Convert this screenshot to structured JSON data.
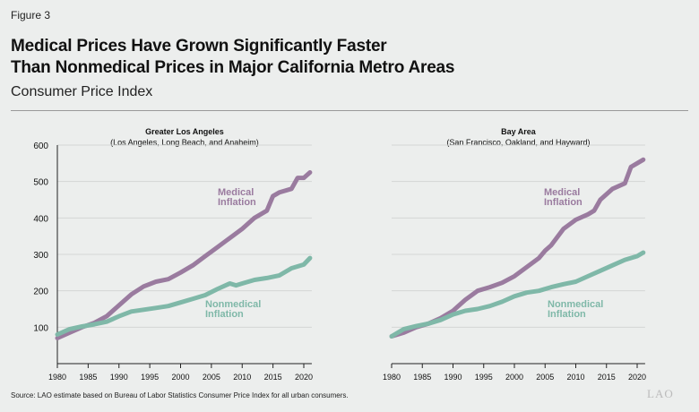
{
  "figure_label": "Figure 3",
  "title_line1": "Medical Prices Have Grown Significantly Faster",
  "title_line2": "Than Nonmedical Prices in Major California Metro Areas",
  "subtitle": "Consumer Price Index",
  "source": "Source: LAO estimate based on Bureau of Labor Statistics Consumer Price Index for all urban consumers.",
  "logo": "LAO",
  "colors": {
    "medical": "#9a7b9f",
    "nonmedical": "#7fb8a8"
  },
  "chart_data": [
    {
      "type": "line",
      "title": "Greater Los Angeles",
      "subtitle": "(Los Angeles, Long Beach, and Anaheim)",
      "ylim": [
        0,
        600
      ],
      "yticks": [
        100,
        200,
        300,
        400,
        500,
        600
      ],
      "xlim": [
        1980,
        2021.3
      ],
      "xticks": [
        1980,
        1985,
        1990,
        1995,
        2000,
        2005,
        2010,
        2015,
        2020
      ],
      "grid": true,
      "series": [
        {
          "name": "Medical Inflation",
          "label_lines": [
            "Medical",
            "Inflation"
          ],
          "x": [
            1980,
            1982,
            1984,
            1986,
            1988,
            1990,
            1992,
            1994,
            1996,
            1998,
            2000,
            2002,
            2004,
            2006,
            2008,
            2010,
            2012,
            2014,
            2015,
            2016,
            2018,
            2019,
            2020,
            2021
          ],
          "values": [
            70,
            85,
            100,
            112,
            130,
            160,
            190,
            212,
            225,
            232,
            250,
            270,
            295,
            320,
            345,
            370,
            400,
            420,
            460,
            470,
            480,
            510,
            510,
            525
          ]
        },
        {
          "name": "Nonmedical Inflation",
          "label_lines": [
            "Nonmedical",
            "Inflation"
          ],
          "x": [
            1980,
            1982,
            1984,
            1986,
            1988,
            1990,
            1992,
            1994,
            1996,
            1998,
            2000,
            2002,
            2004,
            2006,
            2008,
            2009,
            2010,
            2012,
            2014,
            2016,
            2018,
            2020,
            2021
          ],
          "values": [
            80,
            95,
            102,
            108,
            115,
            130,
            143,
            148,
            153,
            158,
            168,
            178,
            188,
            205,
            220,
            215,
            220,
            230,
            235,
            242,
            262,
            272,
            290
          ]
        }
      ]
    },
    {
      "type": "line",
      "title": "Bay Area",
      "subtitle": "(San Francisco, Oakland, and Hayward)",
      "ylim": [
        0,
        600
      ],
      "xlim": [
        1980,
        2021.3
      ],
      "xticks": [
        1980,
        1985,
        1990,
        1995,
        2000,
        2005,
        2010,
        2015,
        2020
      ],
      "grid": true,
      "series": [
        {
          "name": "Medical Inflation",
          "label_lines": [
            "Medical",
            "Inflation"
          ],
          "x": [
            1980,
            1982,
            1984,
            1986,
            1988,
            1990,
            1992,
            1994,
            1996,
            1998,
            2000,
            2002,
            2004,
            2005,
            2006,
            2008,
            2010,
            2012,
            2013,
            2014,
            2016,
            2018,
            2019,
            2020,
            2021
          ],
          "values": [
            75,
            85,
            100,
            110,
            125,
            145,
            175,
            200,
            210,
            222,
            240,
            265,
            290,
            310,
            325,
            370,
            395,
            410,
            420,
            450,
            480,
            495,
            540,
            550,
            560
          ]
        },
        {
          "name": "Nonmedical Inflation",
          "label_lines": [
            "Nonmedical",
            "Inflation"
          ],
          "x": [
            1980,
            1982,
            1984,
            1986,
            1988,
            1990,
            1992,
            1994,
            1996,
            1998,
            2000,
            2002,
            2004,
            2006,
            2008,
            2010,
            2012,
            2014,
            2016,
            2018,
            2020,
            2021
          ],
          "values": [
            75,
            95,
            103,
            110,
            120,
            135,
            145,
            150,
            158,
            170,
            185,
            195,
            200,
            210,
            218,
            225,
            240,
            255,
            270,
            285,
            295,
            305
          ]
        }
      ]
    }
  ]
}
